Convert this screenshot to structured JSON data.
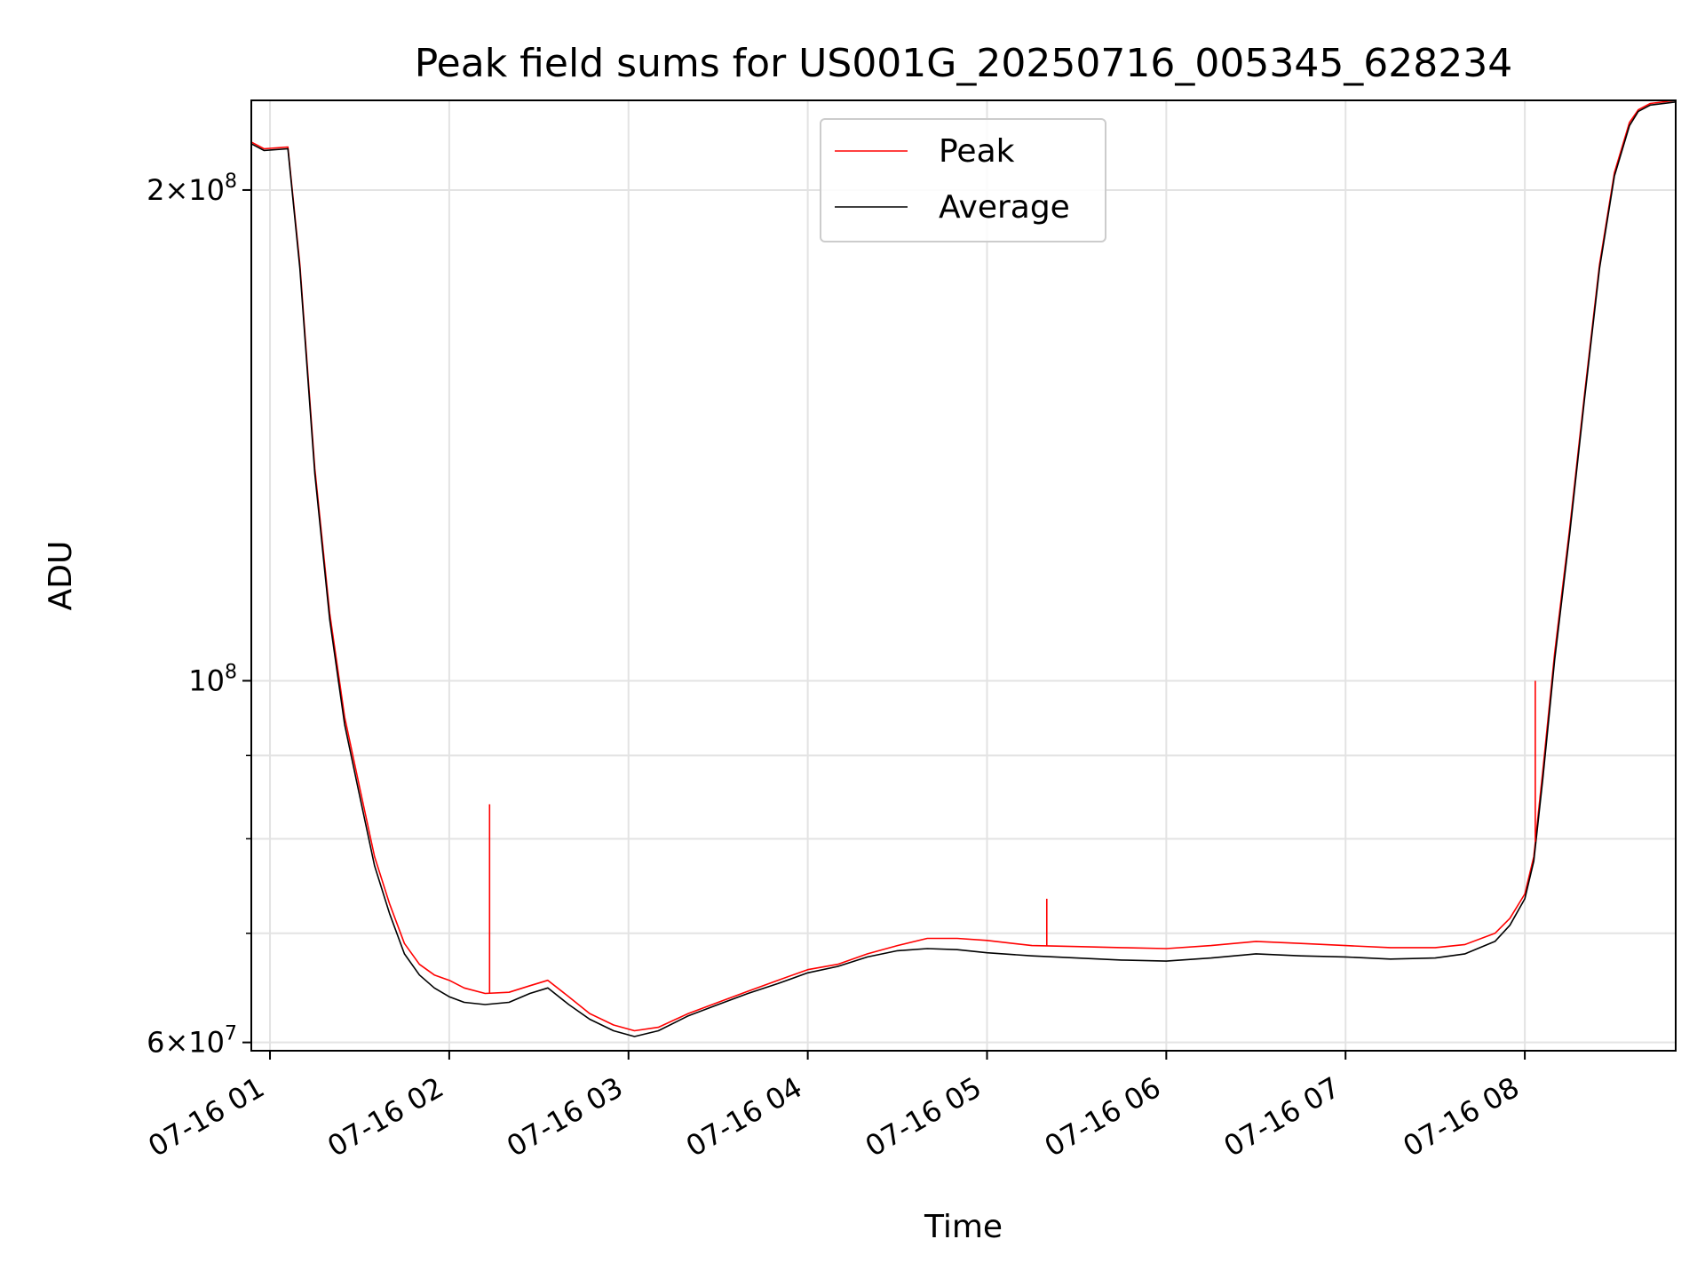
{
  "chart_data": {
    "type": "line",
    "title": "Peak field sums for US001G_20250716_005345_628234",
    "xlabel": "Time",
    "ylabel": "ADU",
    "y_scale": "log",
    "ylim": [
      59300000,
      227000000
    ],
    "xlim": [
      "2025-07-16T00:53:45",
      "2025-07-16T08:50:30"
    ],
    "grid": true,
    "legend_position": "upper center",
    "x_ticks": [
      {
        "value": "2025-07-16T01:00",
        "label": "07-16 01"
      },
      {
        "value": "2025-07-16T02:00",
        "label": "07-16 02"
      },
      {
        "value": "2025-07-16T03:00",
        "label": "07-16 03"
      },
      {
        "value": "2025-07-16T04:00",
        "label": "07-16 04"
      },
      {
        "value": "2025-07-16T05:00",
        "label": "07-16 05"
      },
      {
        "value": "2025-07-16T06:00",
        "label": "07-16 06"
      },
      {
        "value": "2025-07-16T07:00",
        "label": "07-16 07"
      },
      {
        "value": "2025-07-16T08:00",
        "label": "07-16 08"
      }
    ],
    "y_ticks": [
      {
        "value": 60000000,
        "base": "6",
        "exp": "7"
      },
      {
        "value": 100000000,
        "base": "",
        "exp": "8"
      },
      {
        "value": 200000000,
        "base": "2",
        "exp": "8"
      }
    ],
    "y_minor_ticks": [
      70000000,
      80000000,
      90000000
    ],
    "series": [
      {
        "name": "Peak",
        "color": "#ff0000",
        "x": [
          "2025-07-16T00:53:45",
          "2025-07-16T00:58:00",
          "2025-07-16T01:06:00",
          "2025-07-16T01:10:00",
          "2025-07-16T01:15:00",
          "2025-07-16T01:20:00",
          "2025-07-16T01:25:00",
          "2025-07-16T01:30:00",
          "2025-07-16T01:35:00",
          "2025-07-16T01:40:00",
          "2025-07-16T01:45:00",
          "2025-07-16T01:50:00",
          "2025-07-16T01:55:00",
          "2025-07-16T02:00:00",
          "2025-07-16T02:05:00",
          "2025-07-16T02:12:00",
          "2025-07-16T02:20:00",
          "2025-07-16T02:27:00",
          "2025-07-16T02:33:00",
          "2025-07-16T02:40:00",
          "2025-07-16T02:47:00",
          "2025-07-16T02:55:00",
          "2025-07-16T03:02:00",
          "2025-07-16T03:10:00",
          "2025-07-16T03:20:00",
          "2025-07-16T03:30:00",
          "2025-07-16T03:40:00",
          "2025-07-16T03:50:00",
          "2025-07-16T04:00:00",
          "2025-07-16T04:10:00",
          "2025-07-16T04:20:00",
          "2025-07-16T04:30:00",
          "2025-07-16T04:40:00",
          "2025-07-16T04:50:00",
          "2025-07-16T05:00:00",
          "2025-07-16T05:15:00",
          "2025-07-16T05:30:00",
          "2025-07-16T05:45:00",
          "2025-07-16T06:00:00",
          "2025-07-16T06:15:00",
          "2025-07-16T06:30:00",
          "2025-07-16T06:45:00",
          "2025-07-16T07:00:00",
          "2025-07-16T07:15:00",
          "2025-07-16T07:30:00",
          "2025-07-16T07:40:00",
          "2025-07-16T07:50:00",
          "2025-07-16T07:55:00",
          "2025-07-16T08:00:00",
          "2025-07-16T08:03:00",
          "2025-07-16T08:06:00",
          "2025-07-16T08:10:00",
          "2025-07-16T08:15:00",
          "2025-07-16T08:20:00",
          "2025-07-16T08:25:00",
          "2025-07-16T08:30:00",
          "2025-07-16T08:35:00",
          "2025-07-16T08:38:00",
          "2025-07-16T08:42:00",
          "2025-07-16T08:50:30"
        ],
        "y": [
          214000000,
          212000000,
          212500000,
          180000000,
          135000000,
          110000000,
          95000000,
          86000000,
          78000000,
          73000000,
          69000000,
          67000000,
          66000000,
          65500000,
          64800000,
          64300000,
          64400000,
          65000000,
          65500000,
          64000000,
          62500000,
          61500000,
          61000000,
          61300000,
          62500000,
          63500000,
          64500000,
          65500000,
          66500000,
          67000000,
          68000000,
          68800000,
          69500000,
          69500000,
          69300000,
          68800000,
          68700000,
          68600000,
          68500000,
          68800000,
          69200000,
          69000000,
          68800000,
          68600000,
          68600000,
          68900000,
          70000000,
          71500000,
          74000000,
          78000000,
          88000000,
          104000000,
          124000000,
          150000000,
          180000000,
          205000000,
          220000000,
          224000000,
          226000000,
          227000000
        ]
      },
      {
        "name": "Average",
        "color": "#000000",
        "x": [
          "2025-07-16T00:53:45",
          "2025-07-16T00:58:00",
          "2025-07-16T01:06:00",
          "2025-07-16T01:10:00",
          "2025-07-16T01:15:00",
          "2025-07-16T01:20:00",
          "2025-07-16T01:25:00",
          "2025-07-16T01:30:00",
          "2025-07-16T01:35:00",
          "2025-07-16T01:40:00",
          "2025-07-16T01:45:00",
          "2025-07-16T01:50:00",
          "2025-07-16T01:55:00",
          "2025-07-16T02:00:00",
          "2025-07-16T02:05:00",
          "2025-07-16T02:12:00",
          "2025-07-16T02:20:00",
          "2025-07-16T02:27:00",
          "2025-07-16T02:33:00",
          "2025-07-16T02:40:00",
          "2025-07-16T02:47:00",
          "2025-07-16T02:55:00",
          "2025-07-16T03:02:00",
          "2025-07-16T03:10:00",
          "2025-07-16T03:20:00",
          "2025-07-16T03:30:00",
          "2025-07-16T03:40:00",
          "2025-07-16T03:50:00",
          "2025-07-16T04:00:00",
          "2025-07-16T04:10:00",
          "2025-07-16T04:20:00",
          "2025-07-16T04:30:00",
          "2025-07-16T04:40:00",
          "2025-07-16T04:50:00",
          "2025-07-16T05:00:00",
          "2025-07-16T05:15:00",
          "2025-07-16T05:30:00",
          "2025-07-16T05:45:00",
          "2025-07-16T06:00:00",
          "2025-07-16T06:15:00",
          "2025-07-16T06:30:00",
          "2025-07-16T06:45:00",
          "2025-07-16T07:00:00",
          "2025-07-16T07:15:00",
          "2025-07-16T07:30:00",
          "2025-07-16T07:40:00",
          "2025-07-16T07:50:00",
          "2025-07-16T07:55:00",
          "2025-07-16T08:00:00",
          "2025-07-16T08:03:00",
          "2025-07-16T08:06:00",
          "2025-07-16T08:10:00",
          "2025-07-16T08:15:00",
          "2025-07-16T08:20:00",
          "2025-07-16T08:25:00",
          "2025-07-16T08:30:00",
          "2025-07-16T08:35:00",
          "2025-07-16T08:38:00",
          "2025-07-16T08:42:00",
          "2025-07-16T08:50:30"
        ],
        "y": [
          213500000,
          211500000,
          212000000,
          179000000,
          134000000,
          109000000,
          94000000,
          85000000,
          77000000,
          72000000,
          68000000,
          66000000,
          64800000,
          64000000,
          63500000,
          63300000,
          63500000,
          64300000,
          64800000,
          63300000,
          62000000,
          61000000,
          60500000,
          61000000,
          62300000,
          63300000,
          64300000,
          65200000,
          66200000,
          66800000,
          67700000,
          68300000,
          68500000,
          68400000,
          68100000,
          67800000,
          67600000,
          67400000,
          67300000,
          67600000,
          68000000,
          67800000,
          67700000,
          67500000,
          67600000,
          68000000,
          69200000,
          70800000,
          73500000,
          77500000,
          87000000,
          103000000,
          123000000,
          149000000,
          179000000,
          204000000,
          219000000,
          223500000,
          225500000,
          226500000
        ]
      }
    ],
    "spikes": [
      {
        "series": "Peak",
        "x": "2025-07-16T02:13:30",
        "y": 84000000
      },
      {
        "series": "Peak",
        "x": "2025-07-16T05:20:00",
        "y": 73500000
      },
      {
        "series": "Peak",
        "x": "2025-07-16T08:03:30",
        "y": 100000000
      }
    ]
  }
}
